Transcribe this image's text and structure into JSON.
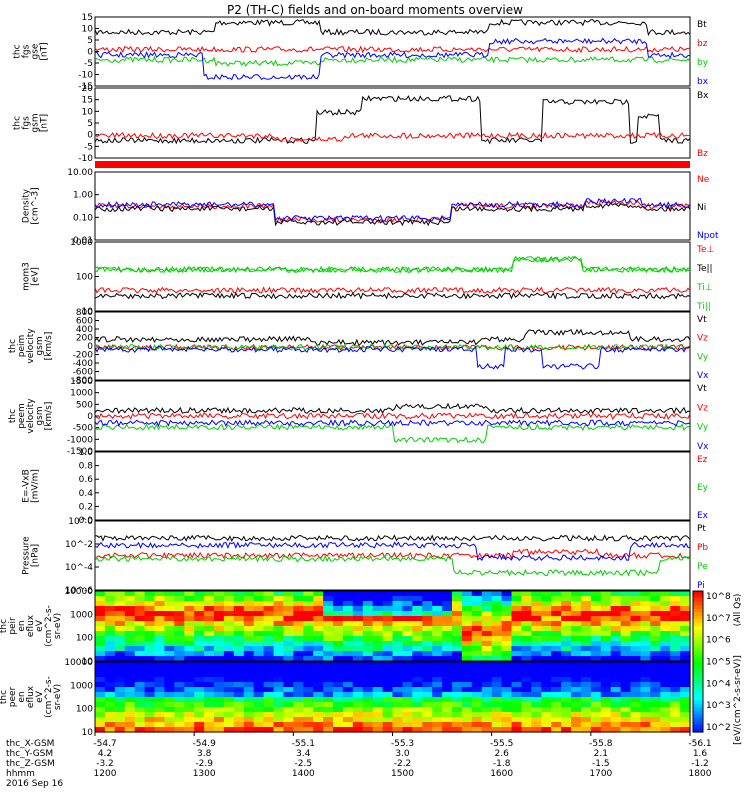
{
  "title": "P2 (TH-C) fields and on-board moments overview",
  "colors": {
    "black": "#000000",
    "red": "#ff0000",
    "green": "#00d000",
    "blue": "#0000ff"
  },
  "chart_data": [
    {
      "type": "line",
      "ylabel": [
        "thc",
        "fgs",
        "gse",
        "[nT]"
      ],
      "ylim": [
        -15,
        15
      ],
      "yticks": [
        "15",
        "10",
        "5",
        "0",
        "-5",
        "-10",
        "-15"
      ],
      "series": [
        {
          "name": "Bt",
          "color": "#000000"
        },
        {
          "name": "bz",
          "color": "#ff0000"
        },
        {
          "name": "by",
          "color": "#00d000"
        },
        {
          "name": "bx",
          "color": "#0000ff"
        }
      ]
    },
    {
      "type": "line",
      "ylabel": [
        "thc",
        "fgs",
        "gsm",
        "[nT]"
      ],
      "ylim": [
        -15,
        20
      ],
      "yticks": [
        "20",
        "15",
        "10",
        "5",
        "0",
        "-5",
        "-10"
      ],
      "series": [
        {
          "name": "Bx",
          "color": "#000000"
        },
        {
          "name": "Bz",
          "color": "#ff0000"
        }
      ]
    },
    {
      "type": "line",
      "ylabel": [
        "Density",
        "[cm^-3]"
      ],
      "yscale": "log",
      "yticks": [
        "10.00",
        "1.00",
        "0.10",
        "0.01"
      ],
      "series": [
        {
          "name": "Ne",
          "color": "#ff0000"
        },
        {
          "name": "Ni",
          "color": "#000000"
        },
        {
          "name": "Npot",
          "color": "#0000ff"
        }
      ]
    },
    {
      "type": "line",
      "ylabel": [
        "mom3",
        "[eV]"
      ],
      "yscale": "log",
      "yticks": [
        "1000",
        "100",
        "10"
      ],
      "series": [
        {
          "name": "Te⊥",
          "color": "#ff0000"
        },
        {
          "name": "Te||",
          "color": "#000000"
        },
        {
          "name": "Ti⊥",
          "color": "#00d000"
        },
        {
          "name": "Ti||",
          "color": "#00d000"
        }
      ]
    },
    {
      "type": "line",
      "ylabel": [
        "thc",
        "peim",
        "velocity",
        "gsm",
        "[km/s]"
      ],
      "ylim": [
        -800,
        800
      ],
      "yticks": [
        "800",
        "600",
        "400",
        "200",
        "0",
        "-200",
        "-400",
        "-600",
        "-800"
      ],
      "series": [
        {
          "name": "Vt",
          "color": "#000000"
        },
        {
          "name": "Vz",
          "color": "#ff0000"
        },
        {
          "name": "Vy",
          "color": "#00d000"
        },
        {
          "name": "Vx",
          "color": "#0000ff"
        }
      ]
    },
    {
      "type": "line",
      "ylabel": [
        "thc",
        "peem",
        "velocity",
        "gsm",
        "[km/s]"
      ],
      "ylim": [
        -1500,
        1500
      ],
      "yticks": [
        "1500",
        "1000",
        "500",
        "0",
        "-500",
        "-1000",
        "-1500"
      ],
      "series": [
        {
          "name": "Vt",
          "color": "#000000"
        },
        {
          "name": "Vz",
          "color": "#ff0000"
        },
        {
          "name": "Vy",
          "color": "#00d000"
        },
        {
          "name": "Vx",
          "color": "#0000ff"
        }
      ]
    },
    {
      "type": "line",
      "ylabel": [
        "E=-VxB",
        "[mV/m]"
      ],
      "ylim": [
        0,
        1
      ],
      "yticks": [
        "1.0",
        "0.8",
        "0.6",
        "0.4",
        "0.2",
        "0.0"
      ],
      "series": [
        {
          "name": "Ez",
          "color": "#ff0000"
        },
        {
          "name": "Ey",
          "color": "#00d000"
        },
        {
          "name": "Ex",
          "color": "#0000ff"
        }
      ]
    },
    {
      "type": "line",
      "ylabel": [
        "Pressure",
        "[nPa]"
      ],
      "yscale": "log",
      "yticks": [
        "10^0",
        "10^-2",
        "10^-4",
        "10^-6"
      ],
      "series": [
        {
          "name": "Pt",
          "color": "#000000"
        },
        {
          "name": "Pb",
          "color": "#ff0000"
        },
        {
          "name": "Pe",
          "color": "#00d000"
        },
        {
          "name": "Pi",
          "color": "#0000ff"
        }
      ]
    },
    {
      "type": "heatmap",
      "ylabel": [
        "thc",
        "peir",
        "en",
        "eflux",
        "eV",
        "(cm^2-s-",
        "sr-eV)"
      ],
      "yticks": [
        "10000",
        "1000",
        "100",
        "10"
      ]
    },
    {
      "type": "heatmap",
      "ylabel": [
        "thc",
        "peer",
        "en",
        "eflux",
        "eV",
        "(cm^2-s-",
        "sr-eV)"
      ],
      "yticks": [
        "10000",
        "1000",
        "100",
        "10"
      ]
    }
  ],
  "colorbar": {
    "ticks": [
      "10^8",
      "10^7",
      "10^6",
      "10^5",
      "10^4",
      "10^3",
      "10^2"
    ],
    "label_top": "(All Qs)",
    "label_bottom": "[eV/(cm^2-s-sr-eV)]"
  },
  "footer": {
    "rows": [
      {
        "label": "thc_X-GSM",
        "values": [
          "-54.7",
          "-54.9",
          "-55.1",
          "-55.3",
          "-55.5",
          "-55.8",
          "-56.1"
        ]
      },
      {
        "label": "thc_Y-GSM",
        "values": [
          "4.2",
          "3.8",
          "3.4",
          "3.0",
          "2.6",
          "2.1",
          "1.6"
        ]
      },
      {
        "label": "thc_Z-GSM",
        "values": [
          "-3.2",
          "-2.9",
          "-2.5",
          "-2.2",
          "-1.8",
          "-1.5",
          "-1.2"
        ]
      },
      {
        "label": "hhmm",
        "values": [
          "1200",
          "1300",
          "1400",
          "1500",
          "1600",
          "1700",
          "1800"
        ]
      }
    ],
    "date": "2016 Sep 16"
  }
}
